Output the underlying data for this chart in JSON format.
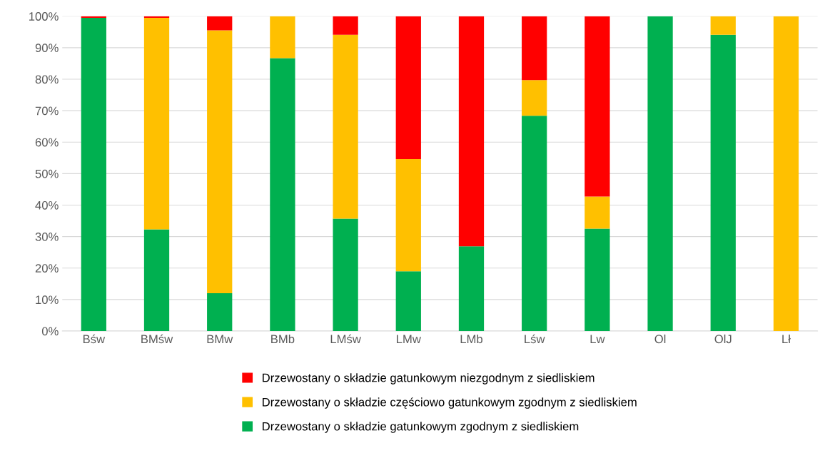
{
  "chart_data": {
    "type": "bar",
    "stacked": true,
    "categories": [
      "Bśw",
      "BMśw",
      "BMw",
      "BMb",
      "LMśw",
      "LMw",
      "LMb",
      "Lśw",
      "Lw",
      "Ol",
      "OlJ",
      "Lł"
    ],
    "series": [
      {
        "name": "Drzewostany o składzie gatunkowym zgodnym z siedliskiem",
        "color": "#00b050",
        "values": [
          99.5,
          32.3,
          12.0,
          86.7,
          35.7,
          19.0,
          26.9,
          68.4,
          32.5,
          100,
          94.1,
          0
        ]
      },
      {
        "name": "Drzewostany o składzie częściowo gatunkowym zgodnym z siedliskiem",
        "color": "#ffc000",
        "values": [
          0,
          67.2,
          83.5,
          13.3,
          58.4,
          35.6,
          0,
          11.3,
          10.2,
          0,
          5.9,
          100
        ]
      },
      {
        "name": "Drzewostany o składzie gatunkowym niezgodnym z siedliskiem",
        "color": "#ff0000",
        "values": [
          0.5,
          0.5,
          4.5,
          0,
          5.9,
          45.4,
          73.1,
          20.3,
          57.3,
          0,
          0,
          0
        ]
      }
    ],
    "ylim": [
      0,
      100
    ],
    "yticks": [
      {
        "value": 0,
        "label": "0%"
      },
      {
        "value": 10,
        "label": "10%"
      },
      {
        "value": 20,
        "label": "20%"
      },
      {
        "value": 30,
        "label": "30%"
      },
      {
        "value": 40,
        "label": "40%"
      },
      {
        "value": 50,
        "label": "50%"
      },
      {
        "value": 60,
        "label": "60%"
      },
      {
        "value": 70,
        "label": "70%"
      },
      {
        "value": 80,
        "label": "80%"
      },
      {
        "value": 90,
        "label": "90%"
      },
      {
        "value": 100,
        "label": "100%"
      }
    ],
    "grid": "y",
    "legend": "bottom"
  }
}
